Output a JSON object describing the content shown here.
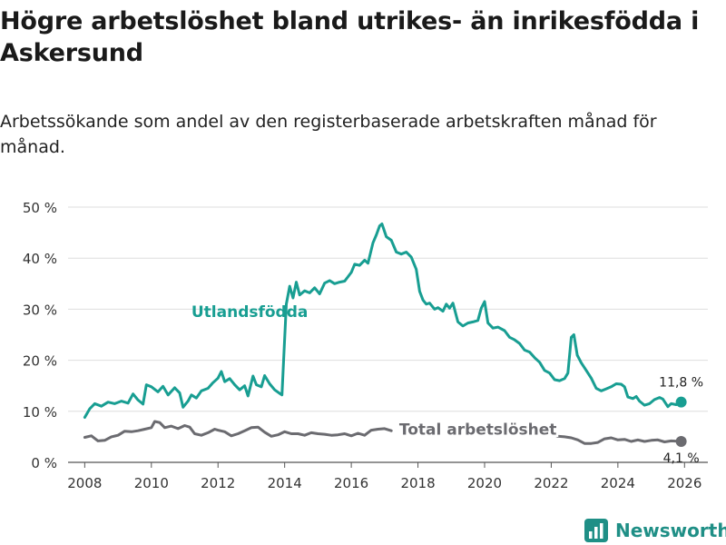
{
  "title": "Högre arbetslöshet bland utrikes- än inrikesfödda i Askersund",
  "subtitle": "Arbetssökande som andel av den registerbaserade arbetskraften månad för månad.",
  "brand": {
    "name": "Newsworthy",
    "logo_icon": "bar-chart-icon",
    "color": "#1f8f86"
  },
  "chart_data": {
    "type": "line",
    "xlabel": "",
    "ylabel": "",
    "xlim": [
      2007.5,
      2026.7
    ],
    "ylim": [
      0,
      50
    ],
    "grid": true,
    "x_ticks": [
      2008,
      2010,
      2012,
      2014,
      2016,
      2018,
      2020,
      2022,
      2024,
      2026
    ],
    "y_ticks": [
      0,
      10,
      20,
      30,
      40,
      50
    ],
    "y_tick_labels": [
      "0 %",
      "10 %",
      "20 %",
      "30 %",
      "40 %",
      "50 %"
    ],
    "series": [
      {
        "name": "Utlandsfödda",
        "color": "#189e92",
        "label_pos": {
          "x": 2011.2,
          "y": 28.5
        },
        "end_label": "11,8 %",
        "end_value": 11.8,
        "points": [
          [
            2008.0,
            8.8
          ],
          [
            2008.15,
            10.5
          ],
          [
            2008.3,
            11.5
          ],
          [
            2008.5,
            11.0
          ],
          [
            2008.7,
            11.8
          ],
          [
            2008.9,
            11.5
          ],
          [
            2009.1,
            12.0
          ],
          [
            2009.3,
            11.6
          ],
          [
            2009.45,
            13.4
          ],
          [
            2009.6,
            12.2
          ],
          [
            2009.75,
            11.4
          ],
          [
            2009.85,
            15.2
          ],
          [
            2010.0,
            14.8
          ],
          [
            2010.2,
            13.8
          ],
          [
            2010.35,
            14.9
          ],
          [
            2010.5,
            13.2
          ],
          [
            2010.7,
            14.6
          ],
          [
            2010.85,
            13.6
          ],
          [
            2010.95,
            10.8
          ],
          [
            2011.1,
            12.0
          ],
          [
            2011.2,
            13.2
          ],
          [
            2011.35,
            12.6
          ],
          [
            2011.5,
            14.0
          ],
          [
            2011.7,
            14.5
          ],
          [
            2011.85,
            15.6
          ],
          [
            2012.0,
            16.5
          ],
          [
            2012.1,
            17.8
          ],
          [
            2012.2,
            15.8
          ],
          [
            2012.35,
            16.4
          ],
          [
            2012.5,
            15.2
          ],
          [
            2012.65,
            14.2
          ],
          [
            2012.8,
            15.0
          ],
          [
            2012.9,
            13.0
          ],
          [
            2013.05,
            16.9
          ],
          [
            2013.15,
            15.2
          ],
          [
            2013.3,
            14.8
          ],
          [
            2013.4,
            17.0
          ],
          [
            2013.55,
            15.4
          ],
          [
            2013.7,
            14.2
          ],
          [
            2013.85,
            13.5
          ],
          [
            2013.92,
            13.2
          ],
          [
            2014.05,
            31.0
          ],
          [
            2014.15,
            34.5
          ],
          [
            2014.25,
            32.2
          ],
          [
            2014.35,
            35.3
          ],
          [
            2014.45,
            32.8
          ],
          [
            2014.6,
            33.6
          ],
          [
            2014.75,
            33.2
          ],
          [
            2014.9,
            34.2
          ],
          [
            2015.05,
            33.0
          ],
          [
            2015.2,
            35.1
          ],
          [
            2015.35,
            35.6
          ],
          [
            2015.5,
            35.0
          ],
          [
            2015.65,
            35.3
          ],
          [
            2015.8,
            35.5
          ],
          [
            2016.0,
            37.2
          ],
          [
            2016.1,
            38.8
          ],
          [
            2016.25,
            38.6
          ],
          [
            2016.4,
            39.6
          ],
          [
            2016.5,
            39.0
          ],
          [
            2016.65,
            43.0
          ],
          [
            2016.75,
            44.5
          ],
          [
            2016.85,
            46.3
          ],
          [
            2016.92,
            46.7
          ],
          [
            2017.05,
            44.2
          ],
          [
            2017.2,
            43.5
          ],
          [
            2017.35,
            41.2
          ],
          [
            2017.5,
            40.8
          ],
          [
            2017.65,
            41.2
          ],
          [
            2017.8,
            40.2
          ],
          [
            2017.95,
            37.8
          ],
          [
            2018.05,
            33.5
          ],
          [
            2018.15,
            31.8
          ],
          [
            2018.25,
            31.0
          ],
          [
            2018.35,
            31.2
          ],
          [
            2018.5,
            30.0
          ],
          [
            2018.6,
            30.3
          ],
          [
            2018.75,
            29.6
          ],
          [
            2018.85,
            31.0
          ],
          [
            2018.95,
            30.2
          ],
          [
            2019.05,
            31.2
          ],
          [
            2019.2,
            27.5
          ],
          [
            2019.35,
            26.7
          ],
          [
            2019.5,
            27.3
          ],
          [
            2019.65,
            27.5
          ],
          [
            2019.8,
            27.8
          ],
          [
            2019.9,
            30.2
          ],
          [
            2020.0,
            31.5
          ],
          [
            2020.1,
            27.3
          ],
          [
            2020.25,
            26.3
          ],
          [
            2020.4,
            26.5
          ],
          [
            2020.6,
            25.8
          ],
          [
            2020.75,
            24.5
          ],
          [
            2020.9,
            24.0
          ],
          [
            2021.05,
            23.3
          ],
          [
            2021.2,
            22.0
          ],
          [
            2021.35,
            21.6
          ],
          [
            2021.5,
            20.5
          ],
          [
            2021.65,
            19.6
          ],
          [
            2021.8,
            18.0
          ],
          [
            2021.95,
            17.5
          ],
          [
            2022.1,
            16.2
          ],
          [
            2022.25,
            16.0
          ],
          [
            2022.4,
            16.4
          ],
          [
            2022.5,
            17.5
          ],
          [
            2022.6,
            24.5
          ],
          [
            2022.68,
            25.0
          ],
          [
            2022.78,
            21.0
          ],
          [
            2022.9,
            19.5
          ],
          [
            2023.05,
            18.0
          ],
          [
            2023.2,
            16.5
          ],
          [
            2023.35,
            14.5
          ],
          [
            2023.5,
            14.0
          ],
          [
            2023.65,
            14.4
          ],
          [
            2023.8,
            14.8
          ],
          [
            2023.95,
            15.4
          ],
          [
            2024.1,
            15.3
          ],
          [
            2024.2,
            14.8
          ],
          [
            2024.3,
            12.8
          ],
          [
            2024.45,
            12.5
          ],
          [
            2024.55,
            12.9
          ],
          [
            2024.65,
            12.0
          ],
          [
            2024.8,
            11.2
          ],
          [
            2024.95,
            11.5
          ],
          [
            2025.1,
            12.3
          ],
          [
            2025.25,
            12.7
          ],
          [
            2025.35,
            12.4
          ],
          [
            2025.5,
            10.9
          ],
          [
            2025.6,
            11.5
          ],
          [
            2025.75,
            11.3
          ],
          [
            2025.9,
            11.8
          ]
        ]
      },
      {
        "name": "Total arbetslöshet",
        "color": "#6b6b70",
        "label_pos": {
          "x": 2019.8,
          "y": 5.4
        },
        "end_label": "4,1 %",
        "end_value": 4.1,
        "points": [
          [
            2008.0,
            4.9
          ],
          [
            2008.2,
            5.2
          ],
          [
            2008.4,
            4.2
          ],
          [
            2008.6,
            4.3
          ],
          [
            2008.8,
            5.0
          ],
          [
            2009.0,
            5.3
          ],
          [
            2009.2,
            6.1
          ],
          [
            2009.4,
            6.0
          ],
          [
            2009.6,
            6.2
          ],
          [
            2009.8,
            6.5
          ],
          [
            2010.0,
            6.8
          ],
          [
            2010.1,
            8.0
          ],
          [
            2010.25,
            7.8
          ],
          [
            2010.4,
            6.8
          ],
          [
            2010.6,
            7.1
          ],
          [
            2010.8,
            6.6
          ],
          [
            2011.0,
            7.2
          ],
          [
            2011.15,
            6.9
          ],
          [
            2011.3,
            5.6
          ],
          [
            2011.5,
            5.3
          ],
          [
            2011.7,
            5.8
          ],
          [
            2011.9,
            6.5
          ],
          [
            2012.0,
            6.3
          ],
          [
            2012.2,
            6.0
          ],
          [
            2012.4,
            5.2
          ],
          [
            2012.6,
            5.6
          ],
          [
            2012.8,
            6.2
          ],
          [
            2013.0,
            6.8
          ],
          [
            2013.2,
            6.9
          ],
          [
            2013.4,
            5.9
          ],
          [
            2013.6,
            5.1
          ],
          [
            2013.8,
            5.4
          ],
          [
            2014.0,
            6.0
          ],
          [
            2014.2,
            5.6
          ],
          [
            2014.4,
            5.6
          ],
          [
            2014.6,
            5.3
          ],
          [
            2014.8,
            5.8
          ],
          [
            2015.0,
            5.6
          ],
          [
            2015.2,
            5.5
          ],
          [
            2015.4,
            5.3
          ],
          [
            2015.6,
            5.4
          ],
          [
            2015.8,
            5.6
          ],
          [
            2016.0,
            5.2
          ],
          [
            2016.2,
            5.7
          ],
          [
            2016.4,
            5.3
          ],
          [
            2016.6,
            6.3
          ],
          [
            2016.8,
            6.5
          ],
          [
            2017.0,
            6.6
          ],
          [
            2017.2,
            6.2
          ]
        ],
        "points_tail": [
          [
            2022.0,
            5.6
          ],
          [
            2022.2,
            5.1
          ],
          [
            2022.4,
            5.0
          ],
          [
            2022.6,
            4.8
          ],
          [
            2022.8,
            4.4
          ],
          [
            2023.0,
            3.7
          ],
          [
            2023.2,
            3.7
          ],
          [
            2023.4,
            3.9
          ],
          [
            2023.6,
            4.6
          ],
          [
            2023.8,
            4.8
          ],
          [
            2024.0,
            4.4
          ],
          [
            2024.2,
            4.5
          ],
          [
            2024.4,
            4.1
          ],
          [
            2024.6,
            4.4
          ],
          [
            2024.8,
            4.1
          ],
          [
            2025.0,
            4.3
          ],
          [
            2025.2,
            4.4
          ],
          [
            2025.4,
            4.0
          ],
          [
            2025.6,
            4.2
          ],
          [
            2025.9,
            4.1
          ]
        ]
      }
    ]
  }
}
